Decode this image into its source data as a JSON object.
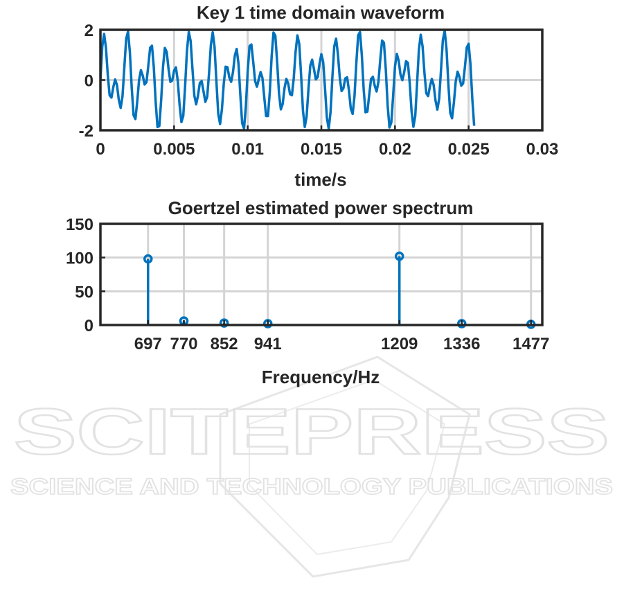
{
  "watermark": {
    "brand": "SCITEPRESS",
    "tagline": "SCIENCE AND TECHNOLOGY PUBLICATIONS",
    "color": "#e2e2e2"
  },
  "chart_data": [
    {
      "type": "line",
      "title": "Key 1 time domain waveform",
      "xlabel": "time/s",
      "ylabel": "",
      "xlim": [
        0,
        0.03
      ],
      "ylim": [
        -2,
        2
      ],
      "xticks": [
        0,
        0.005,
        0.01,
        0.015,
        0.02,
        0.025,
        0.03
      ],
      "xtick_labels": [
        "0",
        "0.005",
        "0.01",
        "0.015",
        "0.02",
        "0.025",
        "0.03"
      ],
      "yticks": [
        -2,
        0,
        2
      ],
      "ytick_labels": [
        "-2",
        "0",
        "2"
      ],
      "grid": true,
      "color": "#0072bd",
      "series": [
        {
          "signal": "sin(2*pi*697*t) + sin(2*pi*1209*t)",
          "t_start": 0,
          "t_end": 0.02547,
          "sample_rate": 8000
        }
      ]
    },
    {
      "type": "stem",
      "title": "Goertzel estimated power spectrum",
      "xlabel": "Frequency/Hz",
      "ylabel": "",
      "xlim": [
        600,
        1500
      ],
      "ylim": [
        0,
        150
      ],
      "categories": [
        "697",
        "770",
        "852",
        "941",
        "1209",
        "1336",
        "1477"
      ],
      "x": [
        697,
        770,
        852,
        941,
        1209,
        1336,
        1477
      ],
      "values": [
        98,
        6,
        3,
        2,
        102,
        2,
        1
      ],
      "yticks": [
        0,
        50,
        100,
        150
      ],
      "ytick_labels": [
        "0",
        "50",
        "100",
        "150"
      ],
      "grid": true,
      "color": "#0072bd"
    }
  ]
}
